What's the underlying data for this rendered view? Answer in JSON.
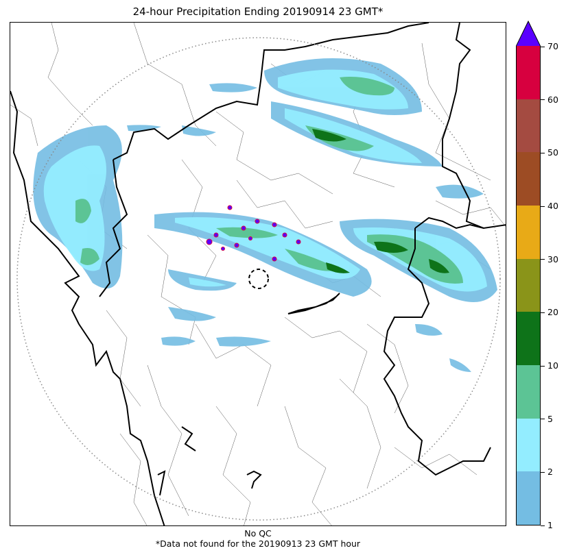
{
  "title": "24-hour Precipitation Ending 20190914 23 GMT*",
  "footer": {
    "line1": "No QC",
    "line2": "*Data not found for the 20190913 23 GMT hour"
  },
  "colorbar": {
    "levels": [
      "1",
      "2",
      "5",
      "10",
      "20",
      "30",
      "40",
      "50",
      "60",
      "70"
    ],
    "colors": [
      "#74bde3",
      "#93edff",
      "#5cc495",
      "#0e7319",
      "#8a9419",
      "#e8aa17",
      "#9d4c24",
      "#a44b41",
      "#d7003f"
    ],
    "over_color": "#5a00ff"
  },
  "map": {
    "radar_range_ring": "dotted",
    "radar_site_marker": "dashed-circle",
    "boundary_color": "#000000",
    "precip_colors": {
      "light": "#74bde3",
      "medium": "#93edff",
      "heavy": "#5cc495",
      "intense": "#0e7319",
      "extreme": "#5a00ff"
    }
  }
}
